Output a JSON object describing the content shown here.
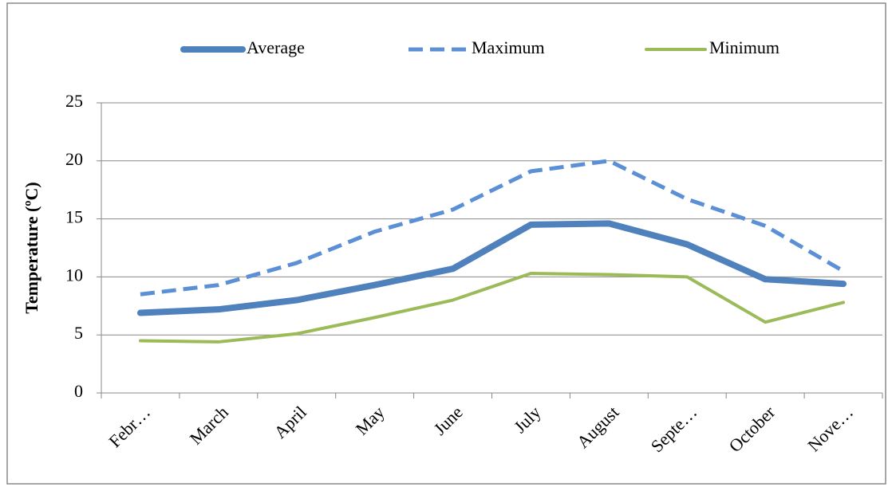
{
  "chart_data": {
    "type": "line",
    "y_label": "Temperature (ºC)",
    "categories": [
      "Febr…",
      "March",
      "April",
      "May",
      "June",
      "July",
      "August",
      "Septe…",
      "October",
      "Nove…"
    ],
    "series": [
      {
        "name": "Average",
        "color": "#4f81bd",
        "line_style": "solid",
        "values": [
          6.9,
          7.2,
          8.0,
          9.3,
          10.7,
          14.5,
          14.6,
          12.8,
          9.8,
          9.4
        ]
      },
      {
        "name": "Maximum",
        "color": "#5b8fd6",
        "line_style": "dashed",
        "values": [
          8.5,
          9.3,
          11.2,
          13.9,
          15.8,
          19.1,
          20.0,
          16.7,
          14.4,
          10.5
        ]
      },
      {
        "name": "Minimum",
        "color": "#9bbb59",
        "line_style": "solid",
        "values": [
          4.5,
          4.4,
          5.1,
          6.5,
          8.0,
          10.3,
          10.2,
          10.0,
          6.1,
          7.8
        ]
      }
    ],
    "ylim": [
      0,
      25
    ],
    "yticks": [
      0,
      5,
      10,
      15,
      20,
      25
    ],
    "grid": true,
    "legend": "top"
  }
}
